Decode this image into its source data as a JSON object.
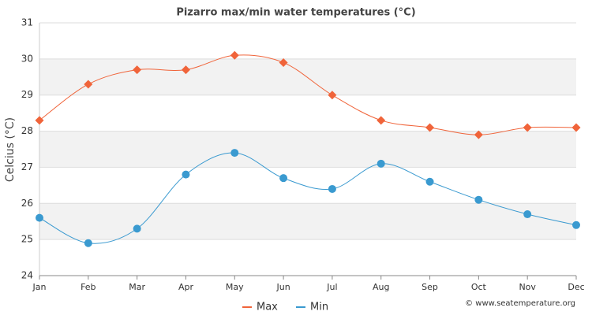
{
  "chart_data": {
    "type": "line",
    "title": "Pizarro max/min water temperatures (°C)",
    "y_label": "Celcius (°C)",
    "source": "© www.seatemperature.org",
    "categories": [
      "Jan",
      "Feb",
      "Mar",
      "Apr",
      "May",
      "Jun",
      "Jul",
      "Aug",
      "Sep",
      "Oct",
      "Nov",
      "Dec"
    ],
    "series": [
      {
        "name": "Max",
        "color": "#f0643a",
        "marker": "diamond",
        "values": [
          28.3,
          29.3,
          29.7,
          29.7,
          30.1,
          29.9,
          29.0,
          28.3,
          28.1,
          27.9,
          28.1,
          28.1
        ]
      },
      {
        "name": "Min",
        "color": "#3a9ad0",
        "marker": "circle",
        "values": [
          25.6,
          24.9,
          25.3,
          26.8,
          27.4,
          26.7,
          26.4,
          27.1,
          26.6,
          26.1,
          25.7,
          25.4
        ]
      }
    ],
    "ylim": [
      24,
      31
    ],
    "yticks": [
      24,
      25,
      26,
      27,
      28,
      29,
      30,
      31
    ],
    "grid": true,
    "smooth": true,
    "legend": "bottom"
  }
}
